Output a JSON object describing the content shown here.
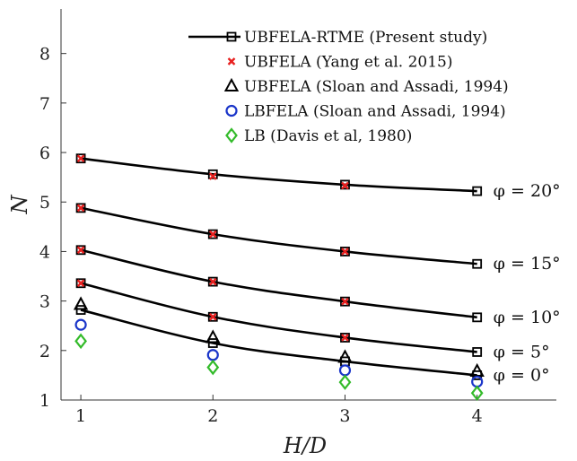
{
  "chart_data": {
    "type": "line",
    "xlabel": "H/D",
    "ylabel": "N",
    "xlim": [
      0.85,
      4.6
    ],
    "ylim": [
      1,
      8.9
    ],
    "xticks": [
      "1",
      "2",
      "3",
      "4"
    ],
    "yticks": [
      "1",
      "2",
      "3",
      "4",
      "5",
      "6",
      "7",
      "8"
    ],
    "grid": false,
    "legend_position": "top-right",
    "x": [
      1,
      2,
      3,
      4
    ],
    "series": [
      {
        "name": "UBFELA-RTME (Present study)",
        "marker": "square-line",
        "color": "#000000",
        "curves": [
          {
            "label": "φ = 0°",
            "values": [
              2.82,
              2.15,
              1.78,
              1.5
            ]
          },
          {
            "label": "φ = 5°",
            "values": [
              3.36,
              2.68,
              2.26,
              1.97
            ]
          },
          {
            "label": "φ = 10°",
            "values": [
              4.03,
              3.39,
              2.99,
              2.67
            ]
          },
          {
            "label": "φ = 15°",
            "values": [
              4.88,
              4.35,
              4.0,
              3.75
            ]
          },
          {
            "label": "φ = 20°",
            "values": [
              5.88,
              5.56,
              5.35,
              5.22
            ]
          }
        ]
      },
      {
        "name": "UBFELA (Yang et al. 2015)",
        "marker": "x",
        "color": "#e8201f",
        "curves": [
          {
            "values": [
              3.36,
              2.68,
              2.26
            ]
          },
          {
            "values": [
              4.03,
              3.39,
              2.99
            ]
          },
          {
            "values": [
              4.88,
              4.35,
              4.0
            ]
          },
          {
            "values": [
              5.88,
              5.52,
              5.33
            ]
          }
        ]
      },
      {
        "name": "UBFELA (Sloan and Assadi, 1994)",
        "marker": "triangle",
        "color": "#000000",
        "curves": [
          {
            "values": [
              2.93,
              2.26,
              1.86,
              1.58
            ]
          }
        ]
      },
      {
        "name": "LBFELA (Sloan and Assadi, 1994)",
        "marker": "circle",
        "color": "#1a35c9",
        "curves": [
          {
            "values": [
              2.52,
              1.91,
              1.6,
              1.37
            ]
          }
        ]
      },
      {
        "name": "LB (Davis et al, 1980)",
        "marker": "diamond",
        "color": "#33bb2a",
        "curves": [
          {
            "values": [
              2.19,
              1.66,
              1.36,
              1.14
            ]
          }
        ]
      }
    ]
  }
}
